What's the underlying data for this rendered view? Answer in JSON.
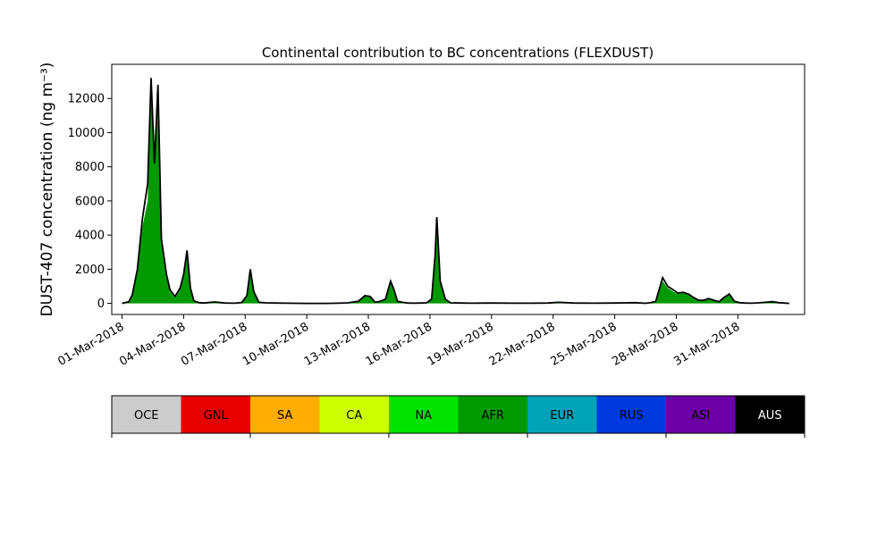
{
  "chart_data": {
    "type": "area",
    "title": "Continental contribution to BC concentrations (FLEXDUST)",
    "ylabel": "DUST-407 concentration (ng m⁻³)",
    "xlabel": "",
    "x_range": [
      "2018-02-28T12:00",
      "2018-04-03T06:00"
    ],
    "ylim": [
      -650,
      14000
    ],
    "y_ticks": [
      0,
      2000,
      4000,
      6000,
      8000,
      10000,
      12000
    ],
    "x_ticks": [
      "2018-03-01",
      "2018-03-04",
      "2018-03-07",
      "2018-03-10",
      "2018-03-13",
      "2018-03-16",
      "2018-03-19",
      "2018-03-22",
      "2018-03-25",
      "2018-03-28",
      "2018-03-31"
    ],
    "x_tick_labels": [
      "01-Mar-2018",
      "04-Mar-2018",
      "07-Mar-2018",
      "10-Mar-2018",
      "13-Mar-2018",
      "16-Mar-2018",
      "19-Mar-2018",
      "22-Mar-2018",
      "25-Mar-2018",
      "28-Mar-2018",
      "31-Mar-2018"
    ],
    "grid": false,
    "series": [
      {
        "name": "AFR",
        "color": "#009a00",
        "x": [
          "2018-03-01T00:00",
          "2018-03-01T08:00",
          "2018-03-01T12:00",
          "2018-03-01T18:00",
          "2018-03-02T00:00",
          "2018-03-02T06:00",
          "2018-03-02T10:00",
          "2018-03-02T14:00",
          "2018-03-02T18:00",
          "2018-03-02T22:00",
          "2018-03-03T04:00",
          "2018-03-03T08:00",
          "2018-03-03T14:00",
          "2018-03-03T20:00",
          "2018-03-04T00:00",
          "2018-03-04T04:00",
          "2018-03-04T08:00",
          "2018-03-04T12:00",
          "2018-03-04T18:00",
          "2018-03-05T00:00",
          "2018-03-05T12:00",
          "2018-03-06T00:00",
          "2018-03-06T12:00",
          "2018-03-06T20:00",
          "2018-03-07T02:00",
          "2018-03-07T06:00",
          "2018-03-07T10:00",
          "2018-03-07T16:00",
          "2018-03-08T00:00",
          "2018-03-08T12:00",
          "2018-03-09T00:00",
          "2018-03-10T00:00",
          "2018-03-11T00:00",
          "2018-03-11T12:00",
          "2018-03-12T00:00",
          "2018-03-12T12:00",
          "2018-03-12T20:00",
          "2018-03-13T02:00",
          "2018-03-13T08:00",
          "2018-03-13T14:00",
          "2018-03-13T20:00",
          "2018-03-14T02:00",
          "2018-03-14T06:00",
          "2018-03-14T10:00",
          "2018-03-14T16:00",
          "2018-03-14T22:00",
          "2018-03-15T06:00",
          "2018-03-15T12:00",
          "2018-03-15T20:00",
          "2018-03-16T02:00",
          "2018-03-16T06:00",
          "2018-03-16T08:00",
          "2018-03-16T12:00",
          "2018-03-16T18:00",
          "2018-03-17T00:00",
          "2018-03-17T12:00",
          "2018-03-18T00:00",
          "2018-03-19T00:00",
          "2018-03-20T00:00",
          "2018-03-21T00:00",
          "2018-03-21T18:00",
          "2018-03-22T00:00",
          "2018-03-22T06:00",
          "2018-03-23T00:00",
          "2018-03-24T00:00",
          "2018-03-25T00:00",
          "2018-03-25T12:00",
          "2018-03-26T00:00",
          "2018-03-26T12:00",
          "2018-03-26T18:00",
          "2018-03-27T00:00",
          "2018-03-27T08:00",
          "2018-03-27T14:00",
          "2018-03-27T20:00",
          "2018-03-28T02:00",
          "2018-03-28T08:00",
          "2018-03-28T14:00",
          "2018-03-28T20:00",
          "2018-03-29T02:00",
          "2018-03-29T08:00",
          "2018-03-29T14:00",
          "2018-03-29T20:00",
          "2018-03-30T02:00",
          "2018-03-30T08:00",
          "2018-03-30T14:00",
          "2018-03-30T20:00",
          "2018-03-31T02:00",
          "2018-03-31T08:00",
          "2018-03-31T16:00",
          "2018-04-01T00:00",
          "2018-04-01T08:00",
          "2018-04-01T16:00",
          "2018-04-02T00:00",
          "2018-04-02T12:00"
        ],
        "values": [
          0,
          80,
          400,
          1800,
          4500,
          6000,
          12000,
          9000,
          11800,
          3500,
          1500,
          700,
          300,
          800,
          1600,
          2800,
          800,
          100,
          30,
          10,
          50,
          10,
          5,
          40,
          400,
          1700,
          600,
          50,
          20,
          10,
          5,
          0,
          0,
          5,
          20,
          100,
          400,
          350,
          50,
          100,
          200,
          1200,
          700,
          100,
          50,
          10,
          5,
          10,
          20,
          200,
          2500,
          4700,
          1200,
          200,
          20,
          10,
          5,
          10,
          5,
          5,
          10,
          30,
          50,
          10,
          5,
          10,
          20,
          30,
          0,
          30,
          100,
          1300,
          900,
          700,
          550,
          600,
          500,
          300,
          150,
          150,
          250,
          150,
          80,
          300,
          500,
          100,
          30,
          10,
          5,
          20,
          50,
          80,
          30,
          0
        ]
      },
      {
        "name": "AUS",
        "color": "#000000",
        "x": [
          "2018-03-01T00:00",
          "2018-03-01T08:00",
          "2018-03-01T12:00",
          "2018-03-01T18:00",
          "2018-03-02T00:00",
          "2018-03-02T06:00",
          "2018-03-02T10:00",
          "2018-03-02T14:00",
          "2018-03-02T18:00",
          "2018-03-02T22:00",
          "2018-03-03T04:00",
          "2018-03-03T08:00",
          "2018-03-03T14:00",
          "2018-03-03T20:00",
          "2018-03-04T00:00",
          "2018-03-04T04:00",
          "2018-03-04T08:00",
          "2018-03-04T12:00",
          "2018-03-04T18:00",
          "2018-03-05T00:00",
          "2018-03-05T12:00",
          "2018-03-06T00:00",
          "2018-03-06T12:00",
          "2018-03-06T20:00",
          "2018-03-07T02:00",
          "2018-03-07T06:00",
          "2018-03-07T10:00",
          "2018-03-07T16:00",
          "2018-03-08T00:00",
          "2018-03-08T12:00",
          "2018-03-09T00:00",
          "2018-03-10T00:00",
          "2018-03-11T00:00",
          "2018-03-11T12:00",
          "2018-03-12T00:00",
          "2018-03-12T12:00",
          "2018-03-12T20:00",
          "2018-03-13T02:00",
          "2018-03-13T08:00",
          "2018-03-13T14:00",
          "2018-03-13T20:00",
          "2018-03-14T02:00",
          "2018-03-14T06:00",
          "2018-03-14T10:00",
          "2018-03-14T16:00",
          "2018-03-14T22:00",
          "2018-03-15T06:00",
          "2018-03-15T12:00",
          "2018-03-15T20:00",
          "2018-03-16T02:00",
          "2018-03-16T06:00",
          "2018-03-16T08:00",
          "2018-03-16T12:00",
          "2018-03-16T18:00",
          "2018-03-17T00:00",
          "2018-03-17T12:00",
          "2018-03-18T00:00",
          "2018-03-19T00:00",
          "2018-03-20T00:00",
          "2018-03-21T00:00",
          "2018-03-21T18:00",
          "2018-03-22T00:00",
          "2018-03-22T06:00",
          "2018-03-23T00:00",
          "2018-03-24T00:00",
          "2018-03-25T00:00",
          "2018-03-25T12:00",
          "2018-03-26T00:00",
          "2018-03-26T12:00",
          "2018-03-26T18:00",
          "2018-03-27T00:00",
          "2018-03-27T08:00",
          "2018-03-27T14:00",
          "2018-03-27T20:00",
          "2018-03-28T02:00",
          "2018-03-28T08:00",
          "2018-03-28T14:00",
          "2018-03-28T20:00",
          "2018-03-29T02:00",
          "2018-03-29T08:00",
          "2018-03-29T14:00",
          "2018-03-29T20:00",
          "2018-03-30T02:00",
          "2018-03-30T08:00",
          "2018-03-30T14:00",
          "2018-03-30T20:00",
          "2018-03-31T02:00",
          "2018-03-31T08:00",
          "2018-03-31T16:00",
          "2018-04-01T00:00",
          "2018-04-01T08:00",
          "2018-04-01T16:00",
          "2018-04-02T00:00",
          "2018-04-02T12:00"
        ],
        "values": [
          0,
          100,
          500,
          2000,
          5000,
          7000,
          13200,
          8200,
          12800,
          3800,
          1700,
          800,
          400,
          900,
          1700,
          3100,
          900,
          150,
          40,
          20,
          80,
          20,
          10,
          50,
          450,
          2000,
          700,
          60,
          30,
          20,
          10,
          0,
          0,
          10,
          30,
          120,
          450,
          400,
          60,
          120,
          250,
          1300,
          800,
          120,
          60,
          20,
          10,
          20,
          30,
          250,
          2800,
          5050,
          1300,
          250,
          30,
          20,
          10,
          20,
          10,
          10,
          20,
          40,
          60,
          20,
          10,
          20,
          30,
          40,
          5,
          40,
          120,
          1500,
          1000,
          800,
          600,
          650,
          550,
          350,
          180,
          180,
          280,
          180,
          100,
          350,
          550,
          120,
          40,
          20,
          10,
          30,
          60,
          100,
          40,
          0
        ]
      }
    ],
    "legend": {
      "placement": "bottom",
      "entries": [
        {
          "label": "OCE",
          "color": "#cccccc",
          "text_color": "#000000"
        },
        {
          "label": "GNL",
          "color": "#e60000",
          "text_color": "#000000"
        },
        {
          "label": "SA",
          "color": "#ffad00",
          "text_color": "#000000"
        },
        {
          "label": "CA",
          "color": "#ccff00",
          "text_color": "#000000"
        },
        {
          "label": "NA",
          "color": "#00e300",
          "text_color": "#000000"
        },
        {
          "label": "AFR",
          "color": "#009a00",
          "text_color": "#000000"
        },
        {
          "label": "EUR",
          "color": "#00a3b7",
          "text_color": "#000000"
        },
        {
          "label": "RUS",
          "color": "#003adf",
          "text_color": "#000000"
        },
        {
          "label": "ASI",
          "color": "#6b00a6",
          "text_color": "#000000"
        },
        {
          "label": "AUS",
          "color": "#000000",
          "text_color": "#ffffff"
        }
      ]
    }
  }
}
